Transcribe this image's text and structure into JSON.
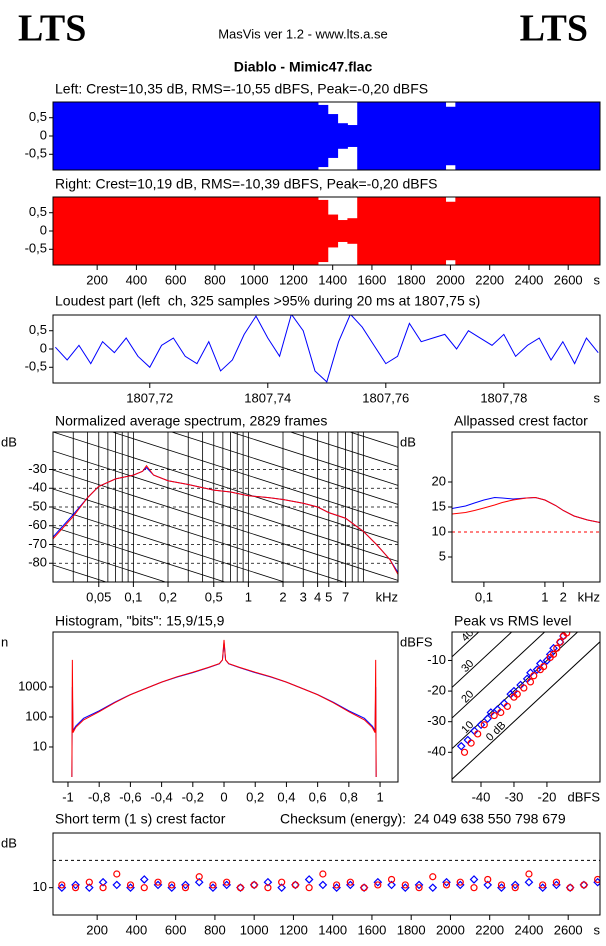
{
  "header": {
    "logo_left": "LTS",
    "app": "MasVis ver 1.2 - www.lts.a.se",
    "logo_right": "LTS",
    "file": "Diablo - Mimic47.flac"
  },
  "chart_data": [
    {
      "type": "waveform",
      "title": "Left: Crest=10,35 dB, RMS=-10,55 dBFS, Peak=-0,20 dBFS",
      "xlim": [
        -25,
        2762
      ],
      "ylim": [
        -0.93,
        0.93
      ],
      "yticks": [
        {
          "value": 0.5,
          "label": "0,5"
        },
        0,
        {
          "value": -0.5,
          "label": "-0,5"
        }
      ],
      "x": [
        0,
        50,
        100,
        150,
        200,
        250,
        300,
        350,
        400,
        450,
        500,
        550,
        600,
        650,
        700,
        750,
        800,
        850,
        900,
        950,
        1000,
        1050,
        1100,
        1150,
        1200,
        1250,
        1300,
        1350,
        1400,
        1450,
        1500,
        1550,
        1600,
        1650,
        1700,
        1750,
        1800,
        1850,
        1900,
        1950,
        2000,
        2050,
        2100,
        2150,
        2200,
        2250,
        2300,
        2350,
        2400,
        2450,
        2500,
        2550,
        2600,
        2650,
        2700,
        2750
      ],
      "series": [
        {
          "color": "#0000ff",
          "values": [
            0.97,
            0.97,
            0.97,
            0.97,
            0.97,
            0.97,
            0.97,
            0.97,
            0.97,
            0.97,
            0.97,
            0.97,
            0.97,
            0.97,
            0.97,
            0.97,
            0.97,
            0.97,
            0.97,
            0.97,
            0.97,
            0.97,
            0.97,
            0.97,
            0.97,
            0.97,
            0.97,
            0.85,
            0.6,
            0.35,
            0.3,
            0.97,
            0.97,
            0.97,
            0.97,
            0.97,
            0.97,
            0.97,
            0.97,
            0.97,
            0.8,
            0.97,
            0.97,
            0.97,
            0.97,
            0.97,
            0.97,
            0.97,
            0.97,
            0.97,
            0.97,
            0.97,
            0.97,
            0.97,
            0.97,
            0.97
          ]
        }
      ]
    },
    {
      "type": "waveform",
      "title": "Right: Crest=10,19 dB, RMS=-10,39 dBFS, Peak=-0,20 dBFS",
      "xlim": [
        -25,
        2762
      ],
      "ylim": [
        -0.93,
        0.93
      ],
      "yticks": [
        {
          "value": 0.5,
          "label": "0,5"
        },
        0,
        {
          "value": -0.5,
          "label": "-0,5"
        }
      ],
      "xticks": [
        200,
        400,
        600,
        800,
        1000,
        1200,
        1400,
        1600,
        1800,
        2000,
        2200,
        2400,
        2600
      ],
      "xlabel": "s",
      "x": [
        0,
        50,
        100,
        150,
        200,
        250,
        300,
        350,
        400,
        450,
        500,
        550,
        600,
        650,
        700,
        750,
        800,
        850,
        900,
        950,
        1000,
        1050,
        1100,
        1150,
        1200,
        1250,
        1300,
        1350,
        1400,
        1450,
        1500,
        1550,
        1600,
        1650,
        1700,
        1750,
        1800,
        1850,
        1900,
        1950,
        2000,
        2050,
        2100,
        2150,
        2200,
        2250,
        2300,
        2350,
        2400,
        2450,
        2500,
        2550,
        2600,
        2650,
        2700,
        2750
      ],
      "series": [
        {
          "color": "#ff0000",
          "values": [
            0.97,
            0.97,
            0.97,
            0.97,
            0.97,
            0.97,
            0.97,
            0.97,
            0.97,
            0.97,
            0.97,
            0.97,
            0.97,
            0.97,
            0.97,
            0.97,
            0.97,
            0.97,
            0.97,
            0.97,
            0.97,
            0.97,
            0.97,
            0.97,
            0.97,
            0.97,
            0.97,
            0.85,
            0.45,
            0.3,
            0.35,
            0.97,
            0.97,
            0.97,
            0.97,
            0.97,
            0.97,
            0.97,
            0.97,
            0.97,
            0.8,
            0.97,
            0.97,
            0.97,
            0.97,
            0.97,
            0.97,
            0.97,
            0.97,
            0.97,
            0.97,
            0.97,
            0.97,
            0.97,
            0.97,
            0.97
          ]
        }
      ]
    },
    {
      "type": "line",
      "title": "Loudest part (left  ch, 325 samples >95% during 20 ms at 1807,75 s)",
      "xlim": [
        1807.7036,
        1807.7963
      ],
      "ylim": [
        -0.93,
        0.93
      ],
      "yticks": [
        {
          "value": 0.5,
          "label": "0,5"
        },
        0,
        {
          "value": -0.5,
          "label": "-0,5"
        }
      ],
      "xticks": [
        {
          "value": 1807.72,
          "label": "1807,72"
        },
        {
          "value": 1807.74,
          "label": "1807,74"
        },
        {
          "value": 1807.76,
          "label": "1807,76"
        },
        {
          "value": 1807.78,
          "label": "1807,78"
        }
      ],
      "xlabel": "s",
      "x": [
        1807.704,
        1807.706,
        1807.708,
        1807.71,
        1807.712,
        1807.714,
        1807.716,
        1807.718,
        1807.72,
        1807.722,
        1807.724,
        1807.726,
        1807.728,
        1807.73,
        1807.732,
        1807.734,
        1807.736,
        1807.738,
        1807.74,
        1807.742,
        1807.744,
        1807.746,
        1807.748,
        1807.75,
        1807.752,
        1807.754,
        1807.756,
        1807.758,
        1807.76,
        1807.762,
        1807.764,
        1807.766,
        1807.768,
        1807.77,
        1807.772,
        1807.774,
        1807.776,
        1807.778,
        1807.78,
        1807.782,
        1807.784,
        1807.786,
        1807.788,
        1807.79,
        1807.792,
        1807.794,
        1807.796
      ],
      "series": [
        {
          "color": "#0000ff",
          "values": [
            0.05,
            -0.3,
            0.1,
            -0.4,
            0.2,
            -0.1,
            0.3,
            -0.2,
            -0.5,
            0.1,
            0.3,
            -0.2,
            -0.4,
            0.2,
            -0.6,
            -0.3,
            0.4,
            0.9,
            0.3,
            -0.2,
            0.95,
            0.5,
            -0.6,
            -0.9,
            0.2,
            0.95,
            0.6,
            0.1,
            -0.4,
            -0.2,
            0.7,
            0.2,
            0.3,
            0.4,
            0.0,
            0.5,
            0.3,
            0.1,
            0.4,
            -0.2,
            0.1,
            0.3,
            -0.3,
            0.2,
            -0.4,
            0.3,
            -0.1
          ]
        }
      ]
    },
    {
      "type": "line",
      "title": "Normalized average spectrum, 2829 frames",
      "xlog": true,
      "xlim": [
        0.02,
        20
      ],
      "ylim": [
        -90,
        -10
      ],
      "ylabel": "dB",
      "xlabel": "kHz",
      "ygrid": true,
      "tilt_lines": true,
      "yticks": [
        -30,
        -40,
        -50,
        -60,
        -70,
        -80
      ],
      "xticks": [
        {
          "value": 0.05,
          "label": "0,05"
        },
        {
          "value": 0.1,
          "label": "0,1"
        },
        {
          "value": 0.2,
          "label": "0,2"
        },
        {
          "value": 0.5,
          "label": "0,5"
        },
        1,
        2,
        3,
        4,
        5,
        7
      ],
      "xgrid": [
        0.03,
        0.04,
        0.05,
        0.06,
        0.07,
        0.08,
        0.09,
        0.1,
        0.2,
        0.3,
        0.4,
        0.5,
        0.6,
        0.7,
        0.8,
        0.9,
        1,
        2,
        3,
        4,
        5,
        6,
        7,
        8,
        9,
        10
      ],
      "x": [
        0.02,
        0.03,
        0.04,
        0.05,
        0.07,
        0.1,
        0.12,
        0.13,
        0.15,
        0.2,
        0.3,
        0.5,
        0.7,
        1,
        1.5,
        2,
        3,
        4,
        5,
        7,
        10,
        13,
        17,
        20
      ],
      "series": [
        {
          "color": "#0000ff",
          "values": [
            -66,
            -54,
            -45,
            -39,
            -35,
            -33,
            -31,
            -29,
            -33,
            -36,
            -38,
            -41,
            -42,
            -44,
            -45,
            -46,
            -48,
            -50,
            -53,
            -56,
            -63,
            -70,
            -78,
            -85
          ]
        },
        {
          "color": "#ff0000",
          "values": [
            -67,
            -55,
            -45,
            -39,
            -35,
            -33,
            -31,
            -28,
            -33,
            -36,
            -38,
            -41,
            -42,
            -44,
            -45,
            -46,
            -48,
            -50,
            -53,
            -56,
            -63,
            -70,
            -78,
            -86
          ]
        }
      ]
    },
    {
      "type": "line",
      "title": "Allpassed crest factor",
      "xlog": true,
      "xlim": [
        0.03,
        8
      ],
      "ylim": [
        0,
        30
      ],
      "ylabel": "dB",
      "xlabel": "kHz",
      "reference": 10,
      "reference_color": "#ff0000",
      "yticks": [
        5,
        10,
        15,
        20
      ],
      "xticks": [
        {
          "value": 0.1,
          "label": "0,1"
        },
        1,
        2
      ],
      "x": [
        0.03,
        0.05,
        0.07,
        0.1,
        0.15,
        0.2,
        0.3,
        0.5,
        0.7,
        1,
        1.5,
        2,
        3,
        5,
        8
      ],
      "series": [
        {
          "color": "#0000ff",
          "values": [
            14.7,
            15.2,
            15.8,
            16.4,
            16.9,
            16.8,
            16.6,
            16.8,
            16.9,
            16.4,
            15.3,
            14.3,
            13.2,
            12.4,
            11.9
          ]
        },
        {
          "color": "#ff0000",
          "values": [
            13.6,
            13.9,
            14.3,
            14.8,
            15.4,
            15.9,
            16.4,
            16.8,
            16.9,
            16.4,
            15.3,
            14.3,
            13.2,
            12.4,
            11.9
          ]
        }
      ]
    },
    {
      "type": "line",
      "title": "Histogram, \"bits\": 15,9/15,9",
      "ylog": true,
      "xlim": [
        -1.096,
        1.115
      ],
      "ylim": [
        0.68,
        68000
      ],
      "ylabel": "n",
      "yticks": [
        10,
        100,
        1000
      ],
      "xticks": [
        -1,
        {
          "value": -0.8,
          "label": "-0,8"
        },
        {
          "value": -0.6,
          "label": "-0,6"
        },
        {
          "value": -0.4,
          "label": "-0,4"
        },
        {
          "value": -0.2,
          "label": "-0,2"
        },
        0,
        {
          "value": 0.2,
          "label": "0,2"
        },
        {
          "value": 0.4,
          "label": "0,4"
        },
        {
          "value": 0.6,
          "label": "0,6"
        },
        {
          "value": 0.8,
          "label": "0,8"
        },
        1
      ],
      "x": [
        -0.975,
        -0.972,
        -0.968,
        -0.95,
        -0.9,
        -0.8,
        -0.7,
        -0.6,
        -0.5,
        -0.4,
        -0.3,
        -0.2,
        -0.1,
        -0.03,
        -0.01,
        0,
        0.01,
        0.03,
        0.1,
        0.2,
        0.3,
        0.4,
        0.5,
        0.6,
        0.7,
        0.8,
        0.9,
        0.95,
        0.968,
        0.972,
        0.975
      ],
      "series": [
        {
          "color": "#0000ff",
          "values": [
            1,
            1000,
            35,
            50,
            90,
            160,
            310,
            560,
            900,
            1450,
            2150,
            3000,
            4400,
            5900,
            8000,
            30000,
            8000,
            5900,
            4400,
            3000,
            2150,
            1450,
            900,
            560,
            310,
            160,
            90,
            50,
            35,
            1000,
            1
          ]
        },
        {
          "color": "#ff0000",
          "values": [
            1,
            8000,
            30,
            45,
            80,
            150,
            300,
            550,
            900,
            1450,
            2200,
            3100,
            4500,
            6000,
            8000,
            37000,
            8000,
            6000,
            4500,
            3100,
            2200,
            1450,
            900,
            550,
            300,
            150,
            80,
            45,
            30,
            8000,
            1
          ]
        }
      ]
    },
    {
      "type": "scatter",
      "title": "Peak vs RMS level",
      "xlim": [
        -48.8,
        -3.9
      ],
      "ylim": [
        -49.7,
        -0.7
      ],
      "xlabel": "dBFS",
      "ylabel": "dBFS",
      "xticks": [
        -40,
        -30,
        -20
      ],
      "yticks": [
        -10,
        -20,
        -30,
        -40
      ],
      "crest_lines": [
        {
          "value": 40,
          "label": "40"
        },
        {
          "value": 30,
          "label": "30"
        },
        {
          "value": 20,
          "label": "20"
        },
        {
          "value": 10,
          "label": "10"
        },
        {
          "value": 0,
          "label": "0 dB"
        }
      ],
      "series": [
        {
          "color": "#0000ff",
          "marker": "diamond",
          "x": [
            -46,
            -44,
            -42,
            -40,
            -38,
            -37,
            -35,
            -33,
            -31,
            -30,
            -28,
            -26,
            -25,
            -23,
            -22,
            -20,
            -19,
            -18,
            -16,
            -15
          ],
          "values": [
            -38,
            -36,
            -33,
            -31,
            -29,
            -27,
            -26,
            -24,
            -21,
            -20,
            -18,
            -16,
            -14,
            -13,
            -11,
            -10,
            -8,
            -6,
            -4,
            -2
          ]
        },
        {
          "color": "#ff0000",
          "marker": "circle",
          "x": [
            -45,
            -43,
            -41,
            -39,
            -36,
            -34,
            -32,
            -30,
            -29,
            -27,
            -25,
            -24,
            -22,
            -21,
            -19,
            -18,
            -17,
            -16,
            -15,
            -14
          ],
          "values": [
            -40,
            -37,
            -34,
            -31,
            -28,
            -27,
            -25,
            -22,
            -21,
            -19,
            -17,
            -15,
            -13,
            -12,
            -9,
            -8,
            -6,
            -4,
            -2,
            -1
          ]
        }
      ]
    },
    {
      "type": "scatter",
      "title": "Short term (1 s) crest factor",
      "note": "Checksum (energy):  24 049 638 550 798 679",
      "xlim": [
        -25,
        2762
      ],
      "ylim": [
        0,
        30
      ],
      "ylabel": "dB",
      "xlabel": "s",
      "reference": 20,
      "reference_color": "#000000",
      "yticks": [
        10
      ],
      "xticks": [
        200,
        400,
        600,
        800,
        1000,
        1200,
        1400,
        1600,
        1800,
        2000,
        2200,
        2400,
        2600
      ],
      "x": [
        20,
        90,
        160,
        230,
        300,
        370,
        440,
        510,
        580,
        650,
        720,
        790,
        860,
        930,
        1000,
        1070,
        1140,
        1210,
        1280,
        1350,
        1420,
        1490,
        1560,
        1630,
        1700,
        1770,
        1840,
        1910,
        1980,
        2050,
        2120,
        2190,
        2260,
        2330,
        2400,
        2470,
        2540,
        2610,
        2680,
        2750
      ],
      "series": [
        {
          "color": "#0000ff",
          "marker": "diamond",
          "values": [
            10,
            11,
            10,
            12,
            11,
            10,
            13,
            11,
            10,
            11,
            12,
            10,
            11,
            10,
            11,
            12,
            10,
            11,
            13,
            11,
            10,
            11,
            10,
            12,
            11,
            10,
            11,
            10,
            12,
            11,
            13,
            11,
            10,
            11,
            12,
            10,
            11,
            10,
            11,
            12
          ]
        },
        {
          "color": "#ff0000",
          "marker": "circle",
          "values": [
            11,
            10,
            12,
            10,
            15,
            11,
            10,
            12,
            11,
            10,
            14,
            11,
            12,
            10,
            11,
            10,
            12,
            11,
            10,
            15,
            11,
            12,
            10,
            11,
            13,
            11,
            10,
            14,
            11,
            12,
            10,
            13,
            11,
            10,
            15,
            11,
            12,
            10,
            11,
            13
          ]
        }
      ]
    }
  ]
}
